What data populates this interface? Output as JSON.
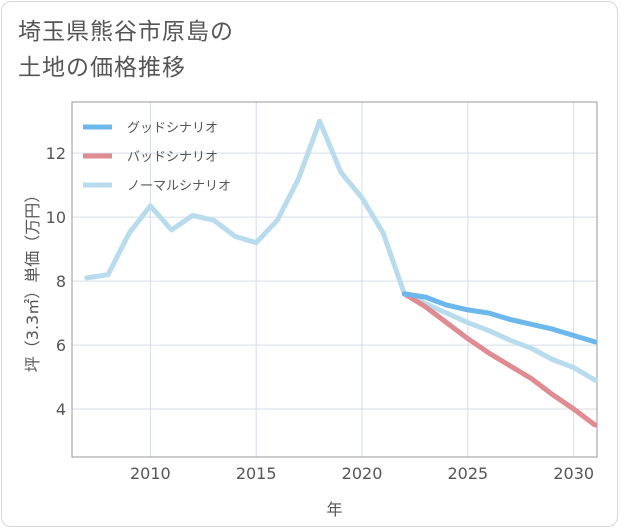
{
  "chart_data": {
    "type": "line",
    "title_lines": [
      "埼玉県熊谷市原島の",
      "土地の価格推移"
    ],
    "xlabel": "年",
    "ylabel": "坪（3.3㎡）単価（万円）",
    "xlim": [
      2006.3,
      2031.1
    ],
    "ylim": [
      2.5,
      13.6
    ],
    "xticks": [
      2010,
      2015,
      2020,
      2025,
      2030
    ],
    "yticks": [
      4,
      6,
      8,
      10,
      12
    ],
    "grid": true,
    "legend_position": "top-left",
    "series": [
      {
        "name": "グッドシナリオ",
        "color": "#6cb8ec",
        "x": [
          2022,
          2023,
          2024,
          2025,
          2026,
          2027,
          2028,
          2029,
          2030,
          2031
        ],
        "y": [
          7.6,
          7.5,
          7.25,
          7.1,
          7.0,
          6.8,
          6.65,
          6.5,
          6.3,
          6.1
        ]
      },
      {
        "name": "バッドシナリオ",
        "color": "#e08a91",
        "x": [
          2022,
          2023,
          2024,
          2025,
          2026,
          2027,
          2028,
          2029,
          2030,
          2031
        ],
        "y": [
          7.6,
          7.2,
          6.7,
          6.2,
          5.75,
          5.35,
          4.95,
          4.45,
          4.0,
          3.5
        ]
      },
      {
        "name": "ノーマルシナリオ",
        "color": "#b8dcee",
        "x": [
          2007,
          2008,
          2009,
          2010,
          2011,
          2012,
          2013,
          2014,
          2015,
          2016,
          2017,
          2018,
          2019,
          2020,
          2021,
          2022,
          2023,
          2024,
          2025,
          2026,
          2027,
          2028,
          2029,
          2030,
          2031
        ],
        "y": [
          8.1,
          8.2,
          9.5,
          10.35,
          9.6,
          10.05,
          9.9,
          9.4,
          9.2,
          9.9,
          11.2,
          13.0,
          11.4,
          10.6,
          9.5,
          7.6,
          7.3,
          7.0,
          6.7,
          6.45,
          6.15,
          5.9,
          5.55,
          5.3,
          4.9
        ]
      }
    ]
  }
}
